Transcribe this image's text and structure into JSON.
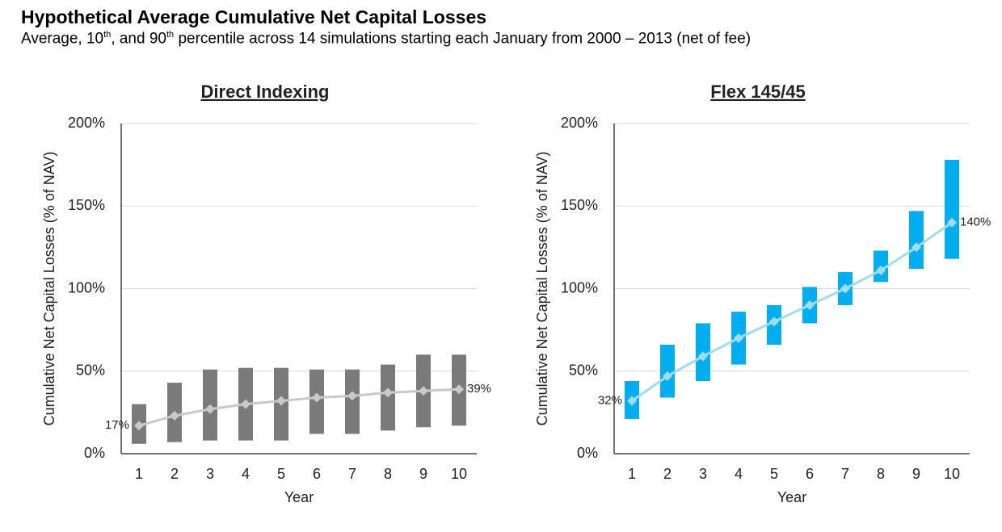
{
  "title": "Hypothetical Average Cumulative Net Capital Losses",
  "subtitle": [
    "Average, 10",
    "th",
    ", and 90",
    "th",
    " percentile across 14 simulations starting each January from 2000 – 2013 (net of fee)"
  ],
  "chart_data": [
    {
      "type": "range",
      "title": "Direct Indexing",
      "x_label": "Year",
      "y_label": "Cumulative Net Capital Losses (% of NAV)",
      "categories": [
        "1",
        "2",
        "3",
        "4",
        "5",
        "6",
        "7",
        "8",
        "9",
        "10"
      ],
      "low": [
        6,
        7,
        8,
        8,
        8,
        12,
        12,
        14,
        16,
        17
      ],
      "high": [
        30,
        43,
        51,
        52,
        52,
        51,
        51,
        54,
        60,
        60
      ],
      "values": [
        17,
        23,
        27,
        30,
        32,
        34,
        35,
        37,
        38,
        39
      ],
      "value_labels": [
        "17%",
        null,
        null,
        null,
        null,
        null,
        null,
        null,
        null,
        "39%"
      ],
      "bar_color": "#7a7a7a",
      "line_color": "#c9c9c9",
      "ylim": [
        0,
        200
      ],
      "yticks": [
        {
          "value": 0,
          "label": "0%"
        },
        {
          "value": 50,
          "label": "50%"
        },
        {
          "value": 100,
          "label": "100%"
        },
        {
          "value": 150,
          "label": "150%"
        },
        {
          "value": 200,
          "label": "200%"
        }
      ],
      "grid": true
    },
    {
      "type": "range",
      "title": "Flex 145/45",
      "x_label": "Year",
      "y_label": "Cumulative Net Capital Losses (% of NAV)",
      "categories": [
        "1",
        "2",
        "3",
        "4",
        "5",
        "6",
        "7",
        "8",
        "9",
        "10"
      ],
      "low": [
        21,
        34,
        44,
        54,
        66,
        79,
        90,
        104,
        112,
        118
      ],
      "high": [
        44,
        66,
        79,
        86,
        90,
        101,
        110,
        123,
        147,
        178
      ],
      "values": [
        32,
        47,
        59,
        70,
        80,
        90,
        100,
        111,
        125,
        140
      ],
      "value_labels": [
        "32%",
        null,
        null,
        null,
        null,
        null,
        null,
        null,
        null,
        "140%"
      ],
      "bar_color": "#00aeef",
      "line_color": "#9fdcee",
      "ylim": [
        0,
        200
      ],
      "yticks": [
        {
          "value": 0,
          "label": "0%"
        },
        {
          "value": 50,
          "label": "50%"
        },
        {
          "value": 100,
          "label": "100%"
        },
        {
          "value": 150,
          "label": "150%"
        },
        {
          "value": 200,
          "label": "200%"
        }
      ],
      "grid": true
    }
  ]
}
